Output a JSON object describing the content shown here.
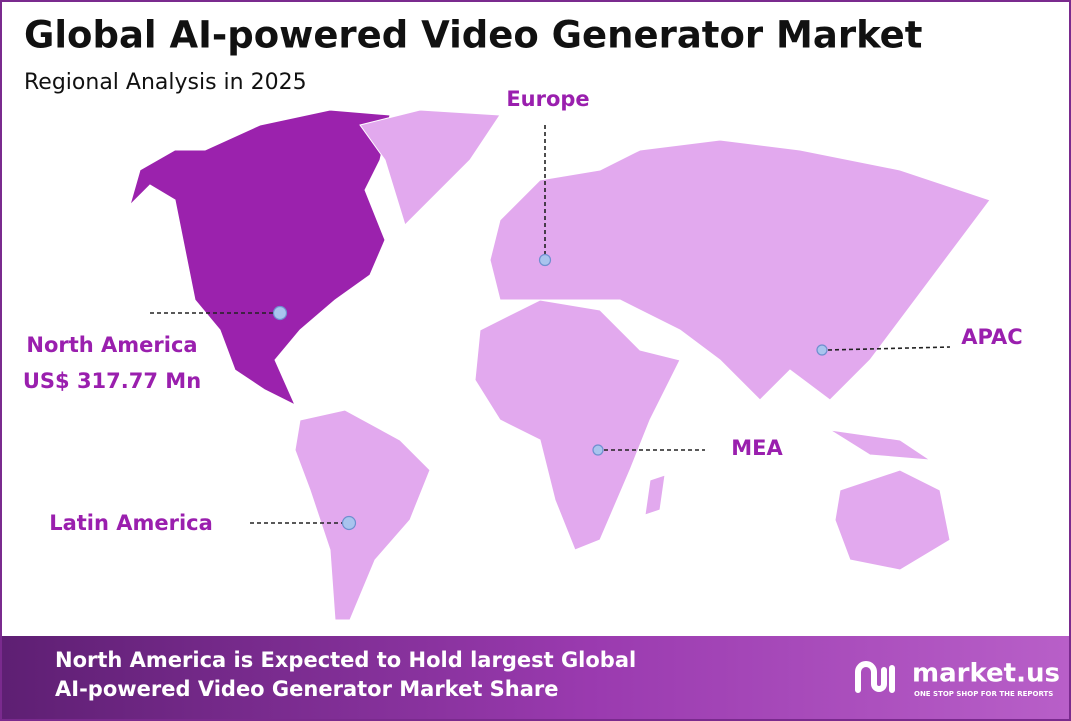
{
  "header": {
    "title": "Global AI-powered Video Generator Market",
    "subtitle": "Regional Analysis in 2025"
  },
  "regions": [
    {
      "name": "Europe"
    },
    {
      "name": "North America",
      "value": "US$ 317.77 Mn"
    },
    {
      "name": "APAC"
    },
    {
      "name": "MEA"
    },
    {
      "name": "Latin America"
    }
  ],
  "footer": {
    "text_lines": [
      "North America is Expected to Hold largest Global",
      "AI-powered Video Generator Market Share"
    ],
    "logo": "market.us",
    "tagline": "ONE STOP SHOP FOR THE REPORTS"
  }
}
